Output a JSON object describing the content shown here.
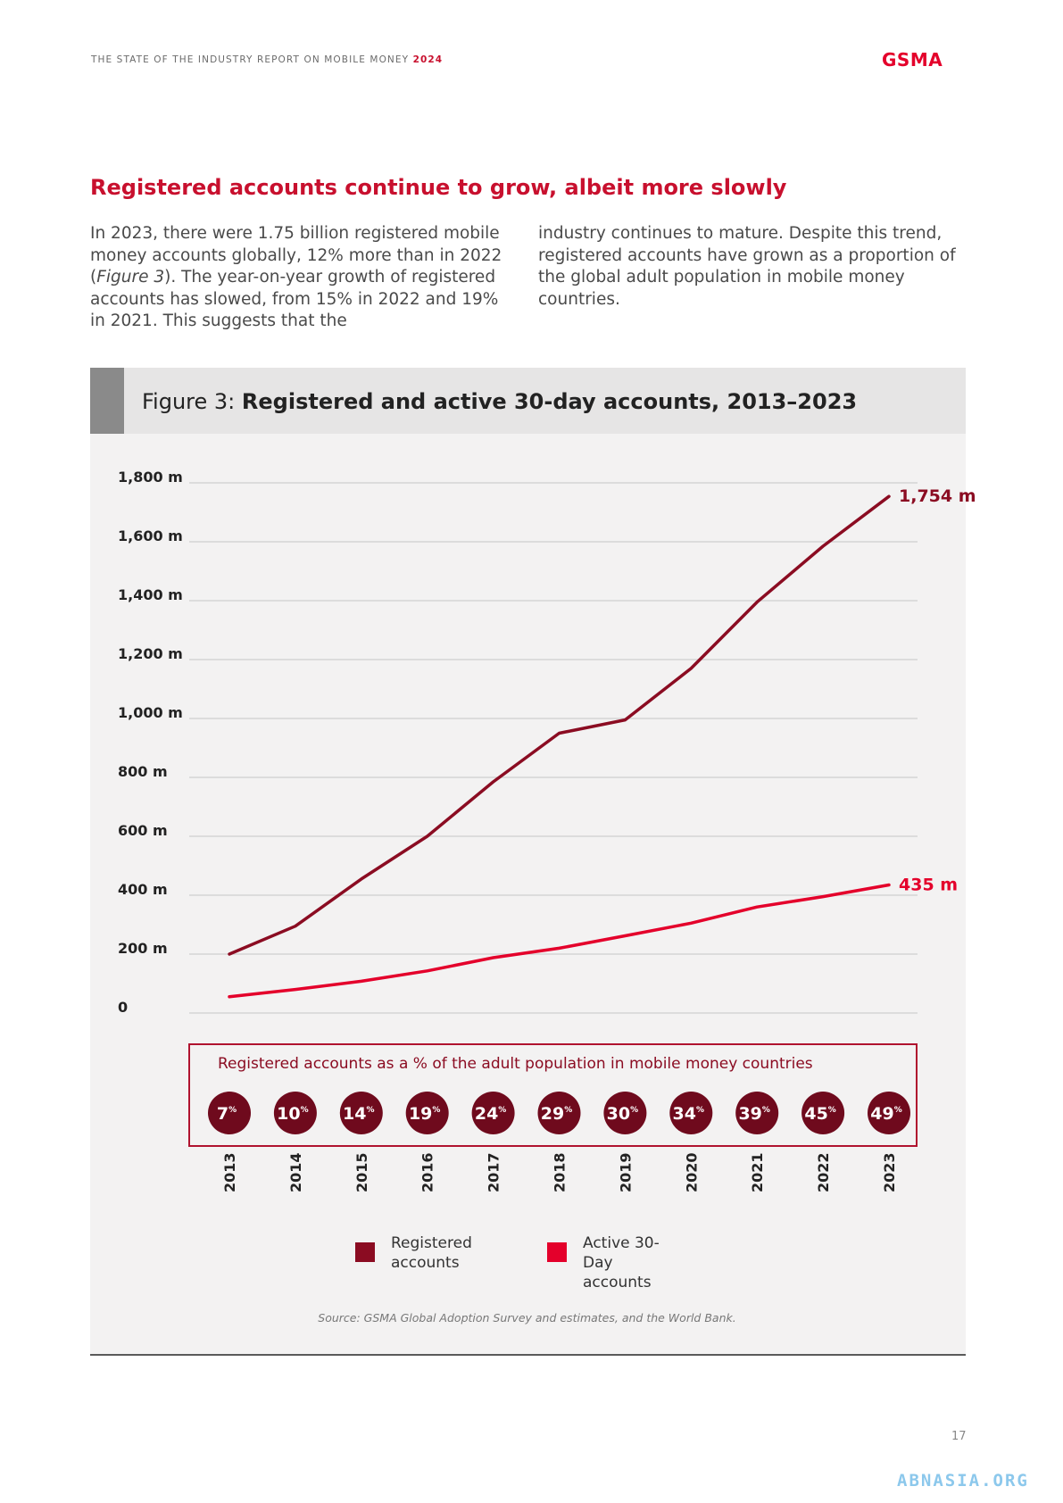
{
  "header": {
    "report_title": "THE STATE OF THE INDUSTRY REPORT ON MOBILE MONEY",
    "report_year": "2024",
    "logo": "GSMA"
  },
  "section_heading": "Registered accounts continue to grow, albeit more slowly",
  "body": {
    "left_pre": "In 2023, there were 1.75 billion registered mobile money accounts globally, 12% more than in 2022 (",
    "left_ref": "Figure 3",
    "left_post": "). The year-on-year growth of registered accounts has slowed, from 15% in 2022 and 19% in 2021. This suggests that the",
    "right": "industry continues to mature. Despite this trend, registered accounts have grown as a proportion of the global adult population in mobile money countries."
  },
  "figure": {
    "title_prefix": "Figure 3:",
    "title_bold": "Registered and active 30-day accounts, 2013–2023",
    "source": "Source: GSMA Global Adoption Survey and estimates, and the World Bank.",
    "pct_box_title": "Registered accounts as a % of the adult population in mobile money countries"
  },
  "colors": {
    "registered": "#8b0c22",
    "active": "#e4002b",
    "heading": "#c8102e",
    "circle": "#6f0a1d"
  },
  "chart_data": {
    "type": "line",
    "x": [
      "2013",
      "2014",
      "2015",
      "2016",
      "2017",
      "2018",
      "2019",
      "2020",
      "2021",
      "2022",
      "2023"
    ],
    "ylim": [
      0,
      1800
    ],
    "yticks": [
      0,
      200,
      400,
      600,
      800,
      1000,
      1200,
      1400,
      1600,
      1800
    ],
    "ytick_labels": [
      "0",
      "200 m",
      "400 m",
      "600 m",
      "800 m",
      "1,000 m",
      "1,200 m",
      "1,400 m",
      "1,600 m",
      "1,800 m"
    ],
    "grid": true,
    "series": [
      {
        "name": "Registered accounts",
        "color": "#8b0c22",
        "values": [
          200,
          295,
          455,
          600,
          785,
          950,
          995,
          1170,
          1395,
          1585,
          1754
        ],
        "end_label": "1,754 m"
      },
      {
        "name": "Active 30-Day accounts",
        "color": "#e4002b",
        "values": [
          55,
          80,
          108,
          143,
          188,
          220,
          262,
          305,
          360,
          395,
          435
        ],
        "end_label": "435 m"
      }
    ],
    "percent_of_adult_population": [
      "7",
      "10",
      "14",
      "19",
      "24",
      "29",
      "30",
      "34",
      "39",
      "45",
      "49"
    ],
    "percent_suffix": "%",
    "legend": [
      {
        "label": "Registered accounts",
        "color": "#8b0c22"
      },
      {
        "label": "Active 30-Day accounts",
        "color": "#e4002b"
      }
    ]
  },
  "page_number": "17",
  "watermark": "ABNASIA.ORG"
}
